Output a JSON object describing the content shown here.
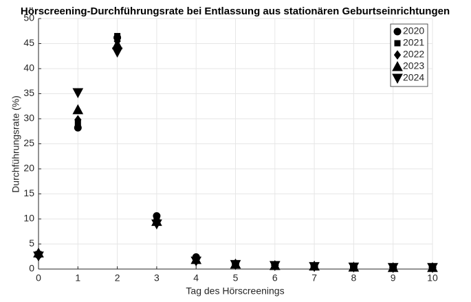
{
  "chart_data": {
    "type": "scatter",
    "title": "Hörscreening-Durchführungsrate bei Entlassung aus stationären Geburtseinrichtungen",
    "x_label": "Tag des Hörscreenings",
    "y_label": "Durchführungsrate (%)",
    "x": [
      0,
      1,
      2,
      3,
      4,
      5,
      6,
      7,
      8,
      9,
      10
    ],
    "series": [
      {
        "name": "2020",
        "color": "#000000",
        "marker": "circle",
        "values": [
          2.8,
          28.2,
          46.2,
          10.6,
          2.4,
          1.1,
          0.8,
          0.6,
          0.4,
          0.3,
          0.3
        ]
      },
      {
        "name": "2021",
        "color": "#000000",
        "marker": "square",
        "values": [
          3.0,
          29.2,
          46.5,
          10.0,
          2.2,
          1.1,
          0.8,
          0.6,
          0.4,
          0.3,
          0.3
        ]
      },
      {
        "name": "2022",
        "color": "#000000",
        "marker": "diamond",
        "values": [
          3.0,
          29.8,
          45.5,
          9.8,
          2.0,
          1.0,
          0.8,
          0.6,
          0.4,
          0.3,
          0.3
        ]
      },
      {
        "name": "2023",
        "color": "#000000",
        "marker": "triangle-up",
        "values": [
          3.2,
          31.8,
          44.8,
          9.5,
          1.9,
          1.0,
          0.7,
          0.6,
          0.4,
          0.3,
          0.3
        ]
      },
      {
        "name": "2024",
        "color": "#000000",
        "marker": "triangle-down",
        "values": [
          2.6,
          35.2,
          43.3,
          9.0,
          1.6,
          0.9,
          0.7,
          0.5,
          0.4,
          0.3,
          0.3
        ]
      }
    ],
    "xlim": [
      0,
      10
    ],
    "xticks": [
      0,
      1,
      2,
      3,
      4,
      5,
      6,
      7,
      8,
      9,
      10
    ],
    "ylim": [
      0,
      50
    ],
    "yticks": [
      0,
      5,
      10,
      15,
      20,
      25,
      30,
      35,
      40,
      45,
      50
    ],
    "grid": true,
    "legend": "top-right"
  }
}
